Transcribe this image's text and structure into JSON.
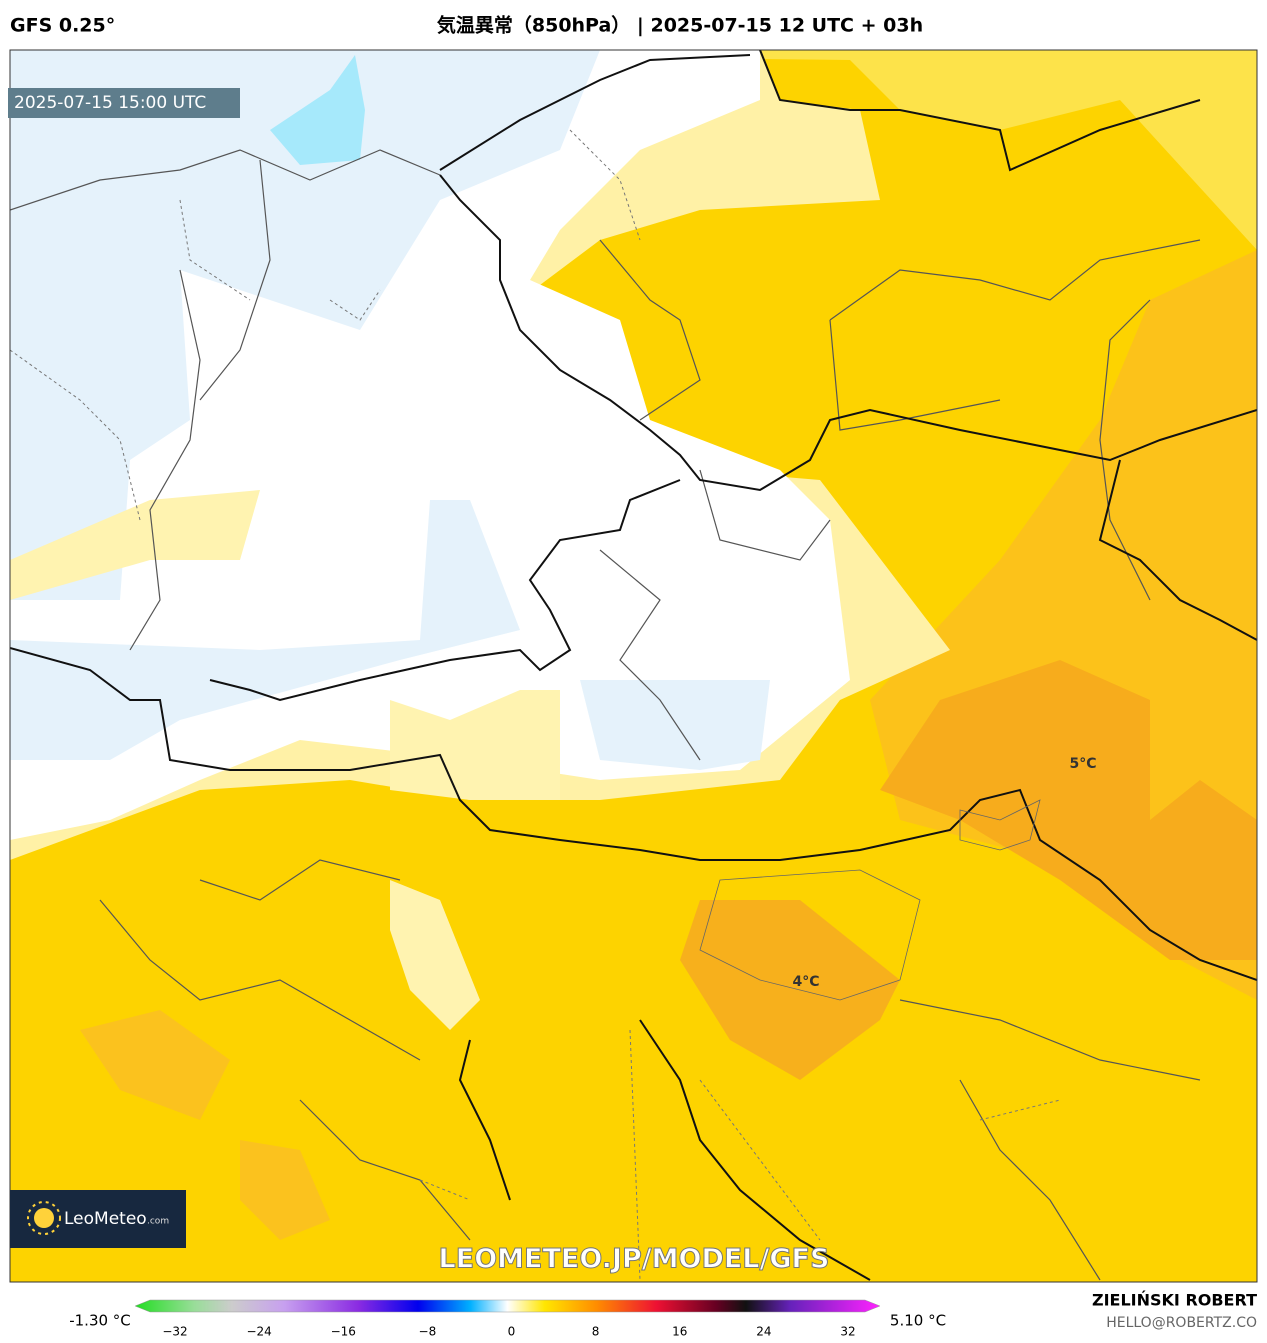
{
  "header": {
    "model": "GFS 0.25°",
    "title": "気温異常（850hPa） | 2025-07-15 12 UTC + 03h"
  },
  "map": {
    "valid_time": "2025-07-15 15:00 UTC",
    "labels": [
      "5°C",
      "4°C"
    ],
    "watermark": "LEOMETEO.JP/MODEL/GFS",
    "logo": {
      "name": "LeoMeteo",
      "suffix": ".com"
    }
  },
  "colorbar": {
    "min_label": "-1.30 °C",
    "max_label": "5.10 °C",
    "ticks": [
      "−32",
      "−24",
      "−16",
      "−8",
      "0",
      "8",
      "16",
      "24",
      "32"
    ]
  },
  "footer": {
    "author": "ZIELIŃSKI ROBERT",
    "email": "HELLO@ROBERTZ.CO"
  }
}
